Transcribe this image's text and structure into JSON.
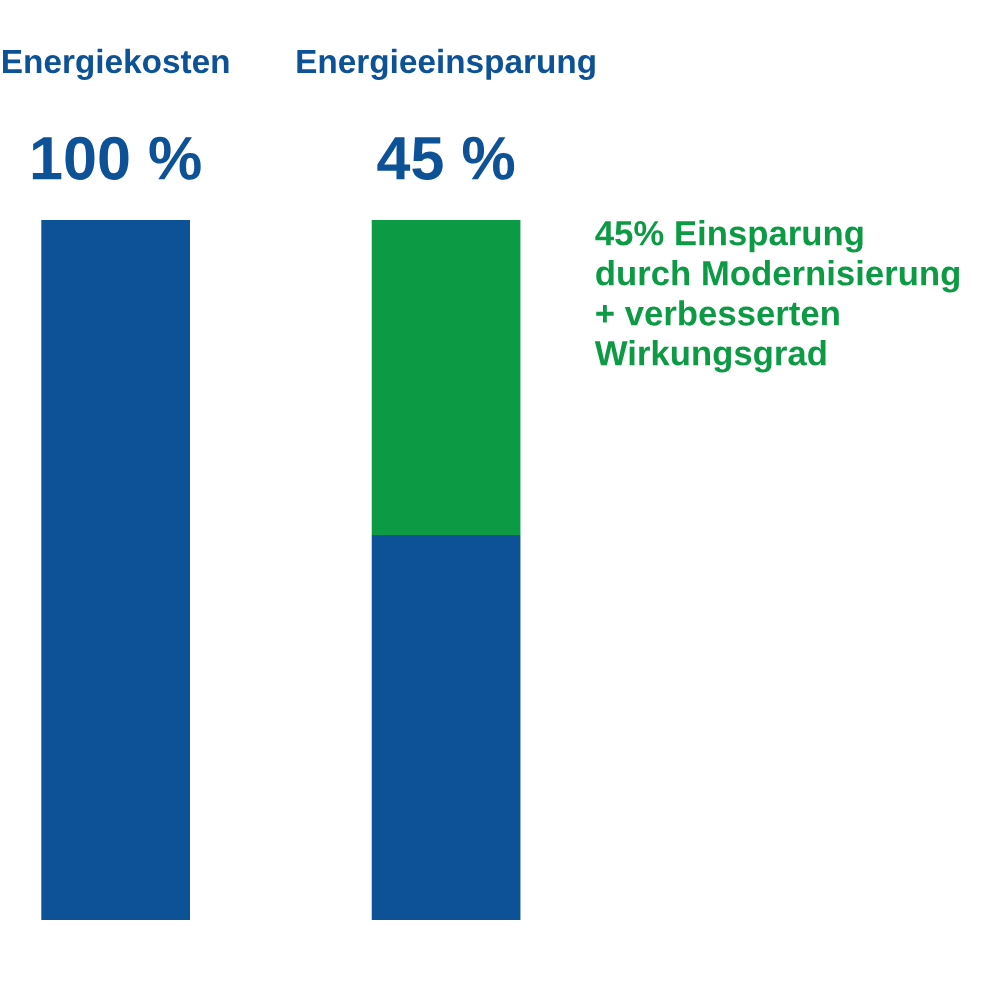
{
  "chart_data": {
    "type": "bar",
    "stacked": true,
    "categories": [
      "Energiekosten",
      "Energieeinsparung"
    ],
    "series": [
      {
        "color": "#0d5196",
        "values": [
          100,
          55
        ],
        "value_labels": [
          "100 %",
          null
        ]
      },
      {
        "color": "#0c9a45",
        "values": [
          null,
          45
        ],
        "value_labels": [
          null,
          "45 %"
        ]
      }
    ],
    "annotations": [
      "45% Einsparung\ndurch Modernisierung\n+ verbesserten\nWirkungsgrad"
    ]
  }
}
